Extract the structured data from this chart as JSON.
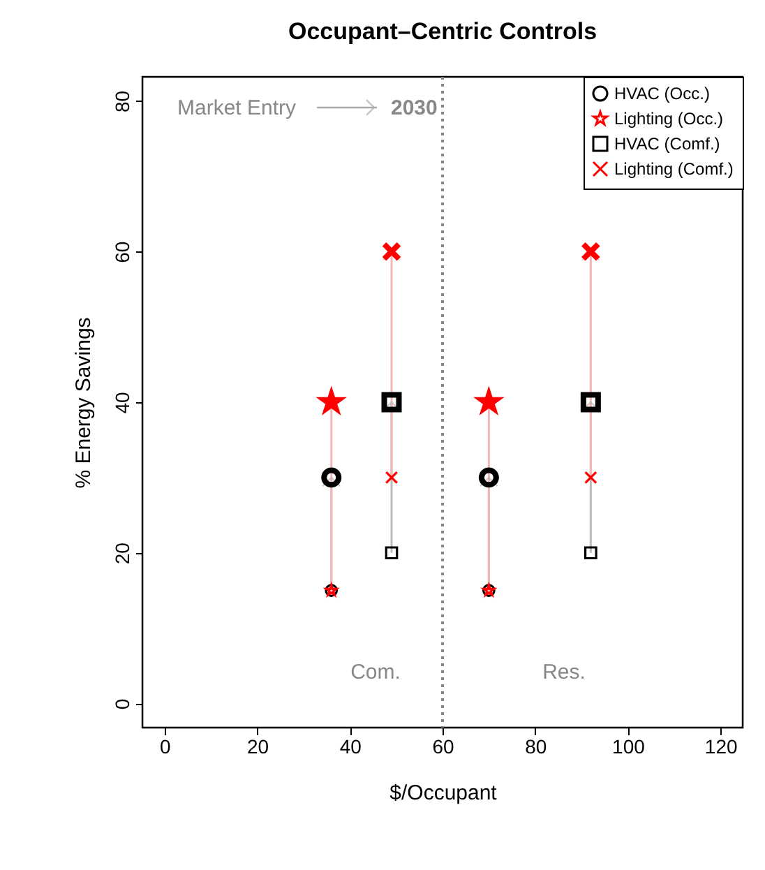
{
  "chart_data": {
    "type": "scatter",
    "title": "Occupant–Centric Controls",
    "xlabel": "$/Occupant",
    "ylabel": "% Energy Savings",
    "xlim": [
      -4.8,
      124.8
    ],
    "xticks": [
      0,
      20,
      40,
      60,
      80,
      100,
      120
    ],
    "ylim": [
      -3.2,
      83.2
    ],
    "yticks": [
      0,
      20,
      40,
      60,
      80
    ],
    "grid": false,
    "legend": "top right",
    "series": [
      {
        "name": "HVAC (Occ.)",
        "color": "#000000",
        "marker": "circle",
        "x": [
          36,
          70
        ],
        "values": [
          15,
          15
        ]
      },
      {
        "name": "Lighting (Occ.)",
        "color": "#ff0000",
        "marker": "star",
        "x": [
          36,
          70
        ],
        "values": [
          15,
          15
        ]
      },
      {
        "name": "HVAC (Comf.)",
        "color": "#000000",
        "marker": "square",
        "x": [
          49,
          92
        ],
        "values": [
          20,
          20
        ]
      },
      {
        "name": "Lighting (Comf.)",
        "color": "#ff0000",
        "marker": "cross",
        "x": [
          49,
          92
        ],
        "values": [
          30,
          30
        ]
      },
      {
        "color": "#000000",
        "marker": "circle",
        "x": [
          36,
          70
        ],
        "values": [
          30,
          30
        ]
      },
      {
        "color": "#ff0000",
        "marker": "star",
        "x": [
          36,
          70
        ],
        "values": [
          40,
          40
        ]
      },
      {
        "color": "#000000",
        "marker": "square",
        "x": [
          49,
          92
        ],
        "values": [
          40,
          40
        ]
      },
      {
        "color": "#ff0000",
        "marker": "cross",
        "x": [
          49,
          92
        ],
        "values": [
          60,
          60
        ]
      }
    ],
    "ref_lines": [
      {
        "axis": "x",
        "value": 60,
        "color": "#888888",
        "line_style": "dotted"
      }
    ],
    "annotations": [
      "Market Entry",
      "2030",
      "Com.",
      "Res."
    ]
  }
}
